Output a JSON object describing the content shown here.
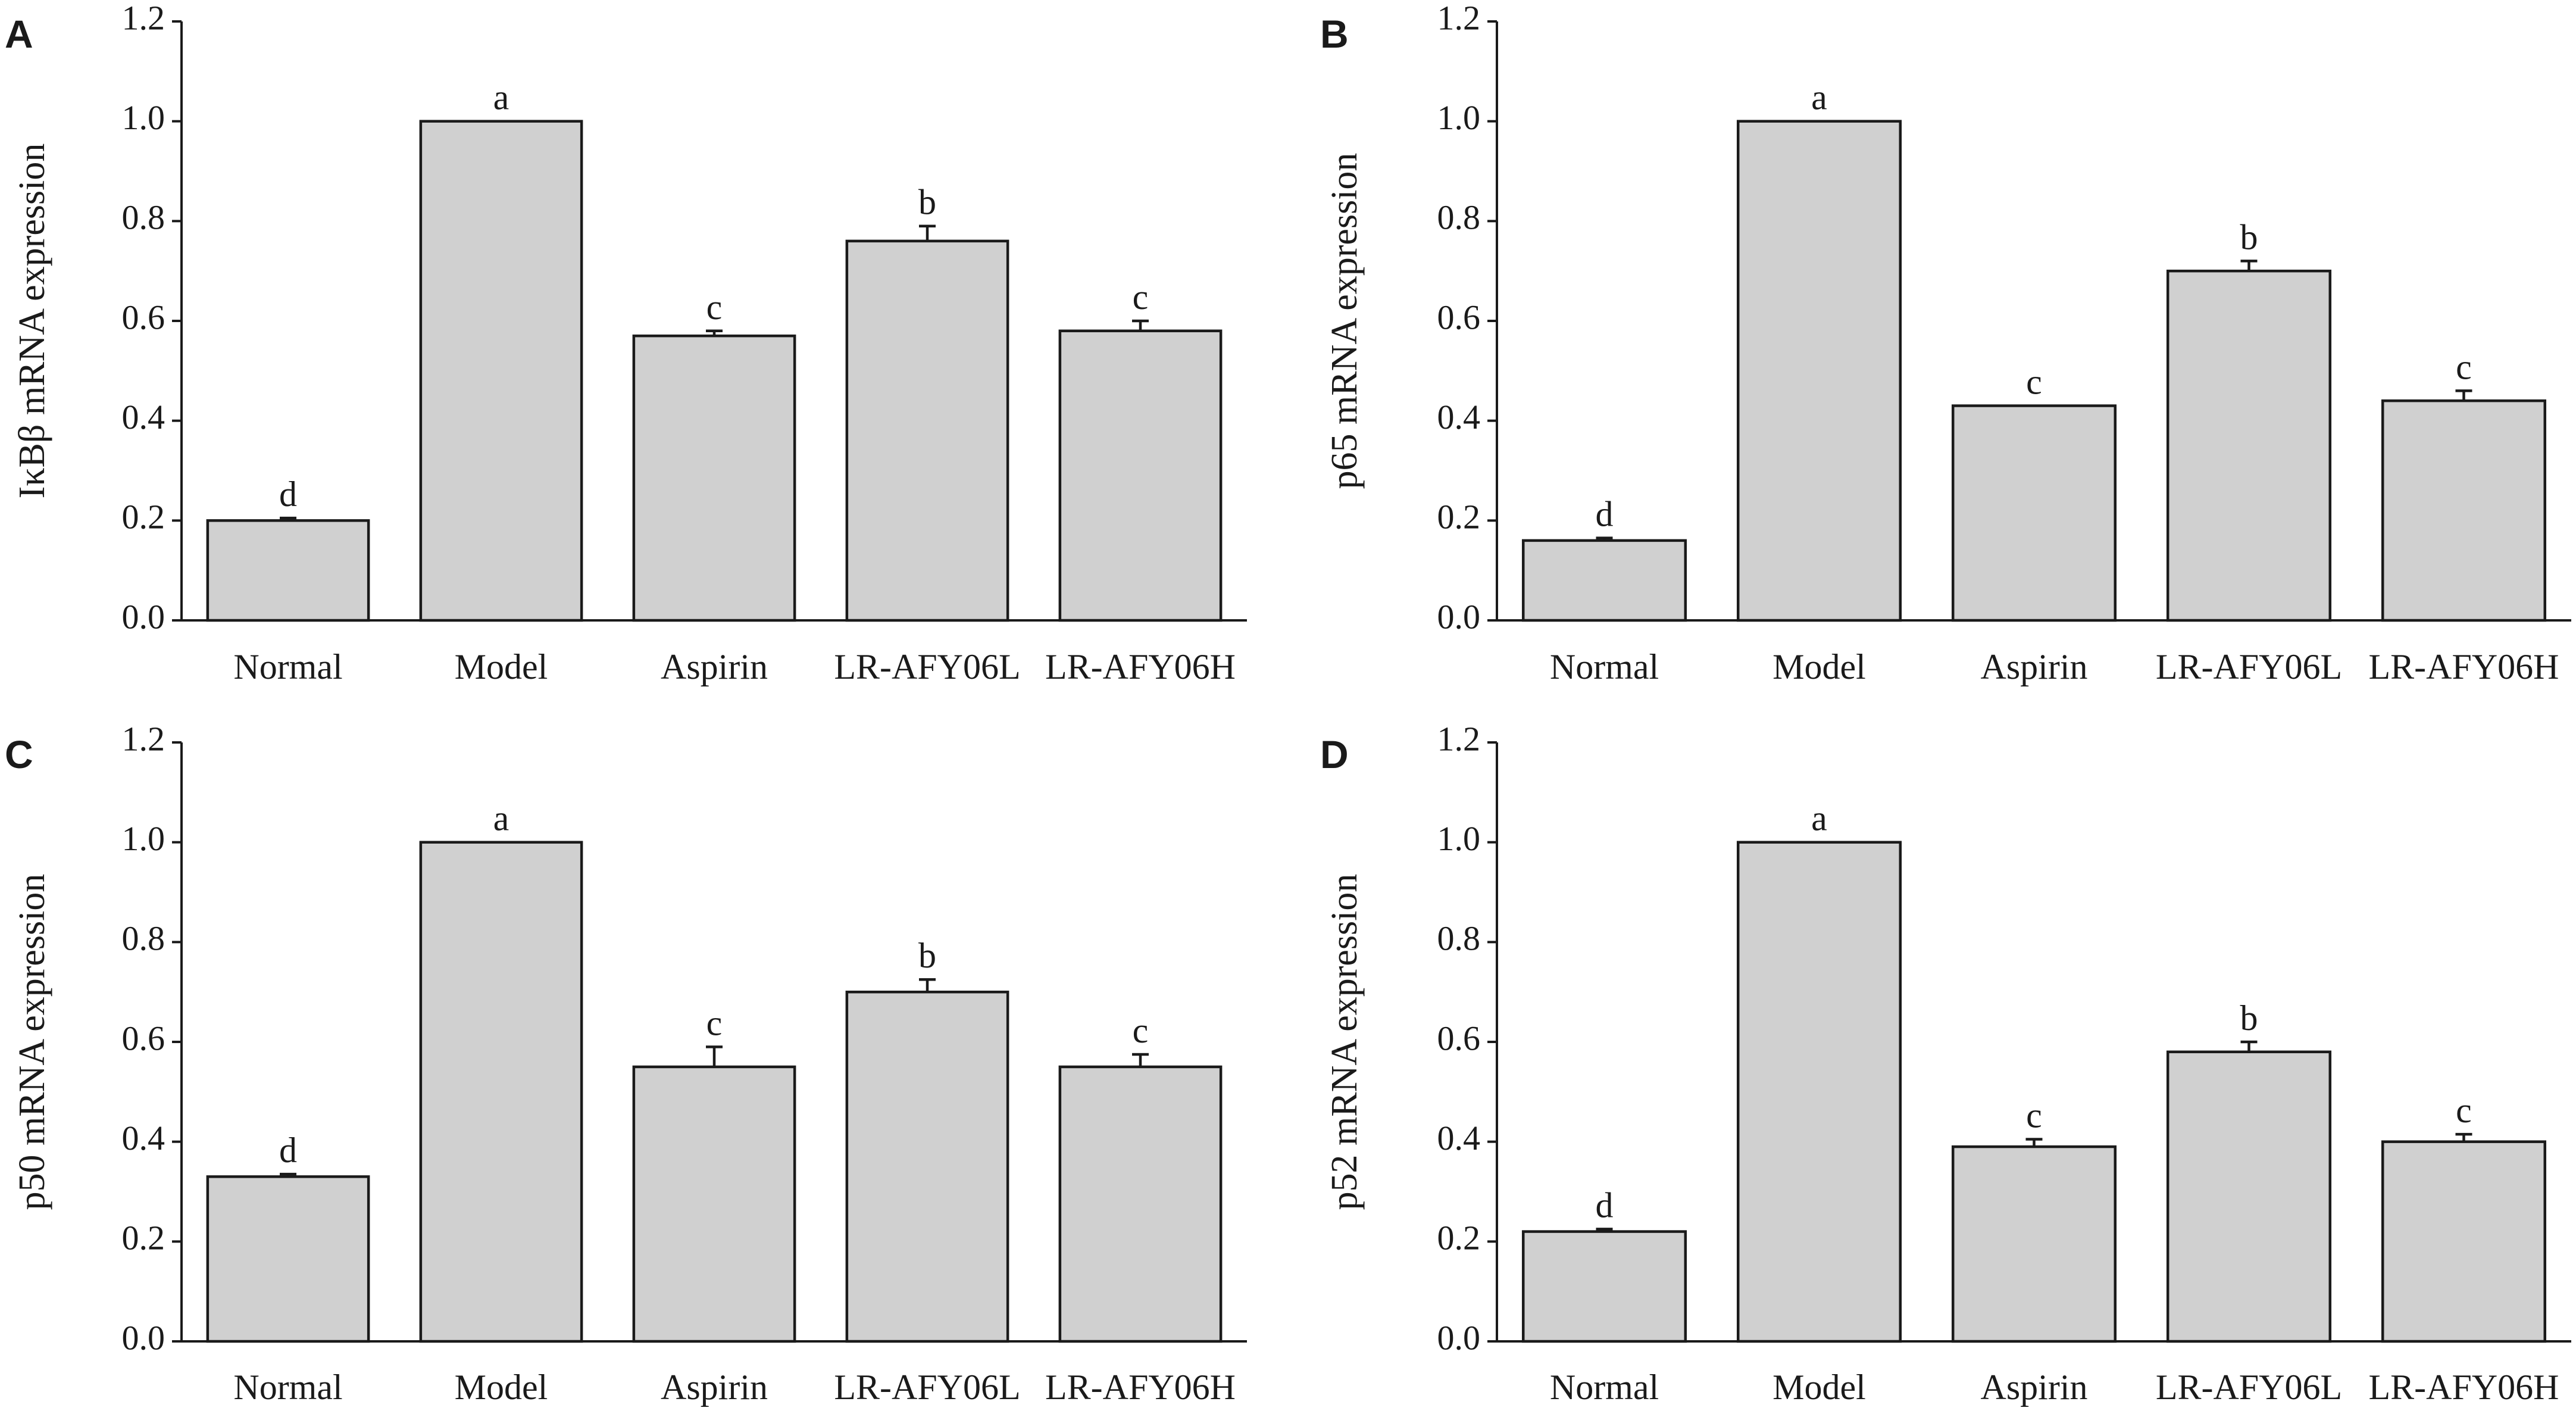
{
  "chart_data": [
    {
      "type": "bar",
      "panel": "A",
      "ylabel": "IκBβ mRNA expression",
      "xlabel": "",
      "ylim": [
        0,
        1.2
      ],
      "yticks": [
        "0.0",
        "0.2",
        "0.4",
        "0.6",
        "0.8",
        "1.0",
        "1.2"
      ],
      "categories": [
        "Normal",
        "Model",
        "Aspirin",
        "LR-AFY06L",
        "LR-AFY06H"
      ],
      "values": [
        0.2,
        1.0,
        0.57,
        0.76,
        0.58
      ],
      "errors": [
        0.005,
        0,
        0.01,
        0.03,
        0.02
      ],
      "letters": [
        "d",
        "a",
        "c",
        "b",
        "c"
      ]
    },
    {
      "type": "bar",
      "panel": "B",
      "ylabel": "p65 mRNA expression",
      "xlabel": "",
      "ylim": [
        0,
        1.2
      ],
      "yticks": [
        "0.0",
        "0.2",
        "0.4",
        "0.6",
        "0.8",
        "1.0",
        "1.2"
      ],
      "categories": [
        "Normal",
        "Model",
        "Aspirin",
        "LR-AFY06L",
        "LR-AFY06H"
      ],
      "values": [
        0.16,
        1.0,
        0.43,
        0.7,
        0.44
      ],
      "errors": [
        0.005,
        0,
        0,
        0.02,
        0.02
      ],
      "letters": [
        "d",
        "a",
        "c",
        "b",
        "c"
      ]
    },
    {
      "type": "bar",
      "panel": "C",
      "ylabel": "p50 mRNA expression",
      "xlabel": "",
      "ylim": [
        0,
        1.2
      ],
      "yticks": [
        "0.0",
        "0.2",
        "0.4",
        "0.6",
        "0.8",
        "1.0",
        "1.2"
      ],
      "categories": [
        "Normal",
        "Model",
        "Aspirin",
        "LR-AFY06L",
        "LR-AFY06H"
      ],
      "values": [
        0.33,
        1.0,
        0.55,
        0.7,
        0.55
      ],
      "errors": [
        0.005,
        0,
        0.04,
        0.025,
        0.025
      ],
      "letters": [
        "d",
        "a",
        "c",
        "b",
        "c"
      ]
    },
    {
      "type": "bar",
      "panel": "D",
      "ylabel": "p52 mRNA expression",
      "xlabel": "",
      "ylim": [
        0,
        1.2
      ],
      "yticks": [
        "0.0",
        "0.2",
        "0.4",
        "0.6",
        "0.8",
        "1.0",
        "1.2"
      ],
      "categories": [
        "Normal",
        "Model",
        "Aspirin",
        "LR-AFY06L",
        "LR-AFY06H"
      ],
      "values": [
        0.22,
        1.0,
        0.39,
        0.58,
        0.4
      ],
      "errors": [
        0.005,
        0,
        0.015,
        0.02,
        0.015
      ],
      "letters": [
        "d",
        "a",
        "c",
        "b",
        "c"
      ]
    }
  ],
  "colors": {
    "bar_fill": "#d0d0d0",
    "bar_stroke": "#1a1a1a"
  }
}
